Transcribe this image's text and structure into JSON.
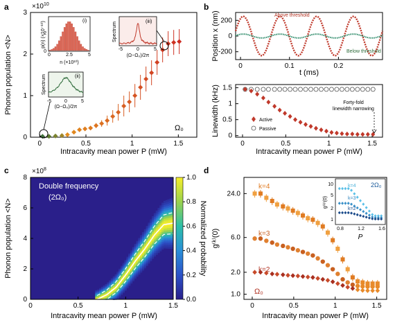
{
  "panels": {
    "a": {
      "letter": "a",
      "ylabel": "Phonon population <N>",
      "xlabel": "Intracavity mean power P (mW)",
      "exp": "×10",
      "exp_power": "10",
      "mode": "Ω₀",
      "inset1": {
        "tag": "(i)",
        "ylabel": "p(n) (×10⁻¹⁰)",
        "xlabel": "n (×10¹⁰)",
        "xticks": [
          "0",
          "2.5",
          "5"
        ],
        "yticks": [
          "0",
          "2"
        ]
      },
      "inset2": {
        "tag": "(ii)",
        "ylabel": "Spectrum",
        "xlabel": "(Ω−Ω₀)/2π",
        "xticks": [
          "-5",
          "0",
          "5"
        ]
      },
      "inset3": {
        "tag": "(iii)",
        "ylabel": "Spectrum",
        "xlabel": "(Ω−Ω₀)/2π",
        "xticks": [
          "-5",
          "0",
          "5"
        ]
      }
    },
    "b_top": {
      "letter": "b",
      "ylabel": "Position x (nm)",
      "xlabel": "t (ms)",
      "above": "Above threshold",
      "below": "Below threshold"
    },
    "b_bot": {
      "ylabel": "Linewidth (kHz)",
      "xlabel": "Intracavity mean power P (mW)",
      "legend_active": "Active",
      "legend_passive": "Passive",
      "annotation1": "Forty-fold",
      "annotation2": "linewidth narrowing"
    },
    "c": {
      "letter": "c",
      "ylabel": "Phonon population <N>",
      "xlabel": "Intracavity mean power P (mW)",
      "exp": "×10",
      "exp_power": "8",
      "title1": "Double frequency",
      "title2": "(2Ω₀)",
      "cbar_label": "Normalized probability"
    },
    "d": {
      "letter": "d",
      "ylabel": "g⁽ᵏ⁾(0)",
      "xlabel": "Intracavity mean power P (mW)",
      "mode": "Ω₀",
      "k4": "k=4",
      "k3": "k=3",
      "k2": "k=2",
      "inset": {
        "mode": "2Ω₀",
        "ylabel": "g⁽ᵏ⁾(0)",
        "xlabel": "P",
        "k4": "k=4",
        "k3": "k=3",
        "k2": "k=2",
        "xticks": [
          "0.8",
          "1.2",
          "1.6"
        ],
        "yticks": [
          "1",
          "2",
          "5",
          "10"
        ]
      }
    }
  },
  "chart_data": [
    {
      "id": "a",
      "type": "scatter",
      "xlabel": "Intracavity mean power P (mW)",
      "ylabel": "Phonon population <N>",
      "xlim": [
        -0.1,
        1.7
      ],
      "ylim": [
        0,
        3
      ],
      "y_scale_note": "×10^10",
      "xticks": [
        0,
        0.5,
        1,
        1.5
      ],
      "yticks": [
        0,
        1,
        2,
        3
      ],
      "series": [
        {
          "x": [
            0.03,
            0.1,
            0.17,
            0.24,
            0.3,
            0.37,
            0.43,
            0.49,
            0.55,
            0.61,
            0.67,
            0.73,
            0.79,
            0.85,
            0.91,
            0.97,
            1.03,
            1.09,
            1.15,
            1.21,
            1.27,
            1.33,
            1.39,
            1.45,
            1.51
          ],
          "y": [
            0.02,
            0.02,
            0.03,
            0.04,
            0.06,
            0.12,
            0.18,
            0.2,
            0.22,
            0.28,
            0.33,
            0.4,
            0.5,
            0.6,
            0.75,
            0.85,
            1.0,
            1.2,
            1.4,
            1.55,
            1.8,
            2.1,
            2.25,
            2.28,
            2.3
          ],
          "err": [
            0,
            0,
            0,
            0,
            0.02,
            0.02,
            0.03,
            0.03,
            0.05,
            0.06,
            0.08,
            0.12,
            0.15,
            0.2,
            0.25,
            0.25,
            0.28,
            0.3,
            0.3,
            0.3,
            0.3,
            0.3,
            0.3,
            0.3,
            0.3
          ]
        }
      ]
    },
    {
      "id": "b_top",
      "type": "line",
      "xlabel": "t (ms)",
      "ylabel": "Position x (nm)",
      "xlim": [
        -0.01,
        0.29
      ],
      "ylim": [
        -300,
        300
      ],
      "xticks": [
        0,
        0.1,
        0.2
      ],
      "yticks": [
        -200,
        0,
        200
      ],
      "series": [
        {
          "name": "Above threshold",
          "amplitude": 250,
          "period_ms": 0.075,
          "phase": 1.1
        },
        {
          "name": "Below threshold",
          "amplitude": 25,
          "period_ms": 0.075,
          "phase": 1.1
        }
      ]
    },
    {
      "id": "b_bot",
      "type": "scatter",
      "xlabel": "Intracavity mean power P (mW)",
      "ylabel": "Linewidth (kHz)",
      "xlim": [
        -0.08,
        1.62
      ],
      "ylim": [
        -0.05,
        1.6
      ],
      "xticks": [
        0,
        0.5,
        1,
        1.5
      ],
      "yticks": [
        0,
        0.5,
        1,
        1.5
      ],
      "series": [
        {
          "name": "Active",
          "x": [
            0.03,
            0.1,
            0.17,
            0.24,
            0.3,
            0.37,
            0.43,
            0.49,
            0.55,
            0.61,
            0.67,
            0.73,
            0.79,
            0.85,
            0.91,
            0.97,
            1.03,
            1.09,
            1.15,
            1.21,
            1.27,
            1.33,
            1.39,
            1.45,
            1.51
          ],
          "y": [
            1.45,
            1.4,
            1.3,
            1.18,
            1.05,
            0.92,
            0.8,
            0.7,
            0.6,
            0.5,
            0.42,
            0.35,
            0.29,
            0.23,
            0.18,
            0.14,
            0.1,
            0.08,
            0.06,
            0.05,
            0.05,
            0.04,
            0.04,
            0.04,
            0.04
          ]
        },
        {
          "name": "Passive",
          "x": [
            0.03,
            0.1,
            0.17,
            0.24,
            0.3,
            0.37,
            0.43,
            0.49,
            0.55,
            0.61,
            0.67,
            0.73,
            0.79,
            0.85,
            0.91,
            0.97,
            1.03,
            1.09,
            1.15,
            1.21,
            1.27,
            1.33,
            1.39,
            1.45,
            1.51
          ],
          "y": [
            1.45,
            1.45,
            1.45,
            1.45,
            1.45,
            1.45,
            1.45,
            1.45,
            1.45,
            1.45,
            1.45,
            1.45,
            1.45,
            1.45,
            1.45,
            1.45,
            1.45,
            1.45,
            1.45,
            1.45,
            1.45,
            1.45,
            1.45,
            1.45,
            1.45
          ]
        }
      ]
    },
    {
      "id": "c",
      "type": "heatmap",
      "xlabel": "Intracavity mean power P (mW)",
      "ylabel": "Phonon population <N>",
      "xlim": [
        0,
        1.5
      ],
      "ylim": [
        0,
        8
      ],
      "y_scale_note": "×10^8",
      "xticks": [
        0,
        0.5,
        1,
        1.5
      ],
      "yticks": [
        0,
        2,
        4,
        6,
        8
      ],
      "ridge": {
        "x": [
          0.7,
          0.8,
          0.9,
          1.0,
          1.1,
          1.2,
          1.3,
          1.4,
          1.5
        ],
        "y": [
          0,
          0.3,
          0.8,
          1.6,
          2.5,
          3.3,
          4.2,
          4.9,
          5.0
        ]
      },
      "colorbar": {
        "min": 0,
        "max": 1,
        "ticks": [
          0,
          0.2,
          0.4,
          0.6,
          0.8,
          1.0
        ],
        "label": "Normalized probability"
      }
    },
    {
      "id": "d",
      "type": "scatter",
      "xlabel": "Intracavity mean power P (mW)",
      "ylabel": "g^(k)(0)",
      "xlim": [
        -0.1,
        1.62
      ],
      "yscale": "log",
      "ylim": [
        0.85,
        40
      ],
      "xticks": [
        0,
        0.5,
        1,
        1.5
      ],
      "yticks": [
        1,
        2,
        6,
        24
      ],
      "series": [
        {
          "name": "k=4",
          "x": [
            0.03,
            0.1,
            0.17,
            0.24,
            0.3,
            0.37,
            0.43,
            0.49,
            0.55,
            0.61,
            0.67,
            0.73,
            0.79,
            0.85,
            0.91,
            0.97,
            1.03,
            1.09,
            1.15,
            1.21,
            1.27,
            1.33,
            1.39,
            1.45,
            1.51
          ],
          "y": [
            24,
            24,
            21,
            19,
            17,
            16,
            15,
            14,
            13,
            12,
            11,
            10.5,
            9.5,
            8.5,
            7,
            5.5,
            4.2,
            3,
            2.2,
            1.7,
            1.5,
            1.45,
            1.4,
            1.4,
            1.4
          ]
        },
        {
          "name": "k=3",
          "x": [
            0.03,
            0.1,
            0.17,
            0.24,
            0.3,
            0.37,
            0.43,
            0.49,
            0.55,
            0.61,
            0.67,
            0.73,
            0.79,
            0.85,
            0.91,
            0.97,
            1.03,
            1.09,
            1.15,
            1.21,
            1.27,
            1.33,
            1.39,
            1.45,
            1.51
          ],
          "y": [
            5.8,
            5.8,
            5.4,
            5.1,
            4.8,
            4.6,
            4.4,
            4.2,
            4.0,
            3.8,
            3.6,
            3.4,
            3.1,
            2.8,
            2.5,
            2.2,
            1.9,
            1.6,
            1.45,
            1.35,
            1.3,
            1.28,
            1.27,
            1.27,
            1.27
          ]
        },
        {
          "name": "k=2",
          "x": [
            0.03,
            0.1,
            0.17,
            0.24,
            0.3,
            0.37,
            0.43,
            0.49,
            0.55,
            0.61,
            0.67,
            0.73,
            0.79,
            0.85,
            0.91,
            0.97,
            1.03,
            1.09,
            1.15,
            1.21,
            1.27,
            1.33,
            1.39,
            1.45,
            1.51
          ],
          "y": [
            2.0,
            2.0,
            1.95,
            1.9,
            1.88,
            1.85,
            1.82,
            1.8,
            1.78,
            1.75,
            1.72,
            1.7,
            1.65,
            1.6,
            1.55,
            1.48,
            1.4,
            1.32,
            1.25,
            1.2,
            1.15,
            1.13,
            1.12,
            1.12,
            1.12
          ]
        }
      ]
    }
  ]
}
